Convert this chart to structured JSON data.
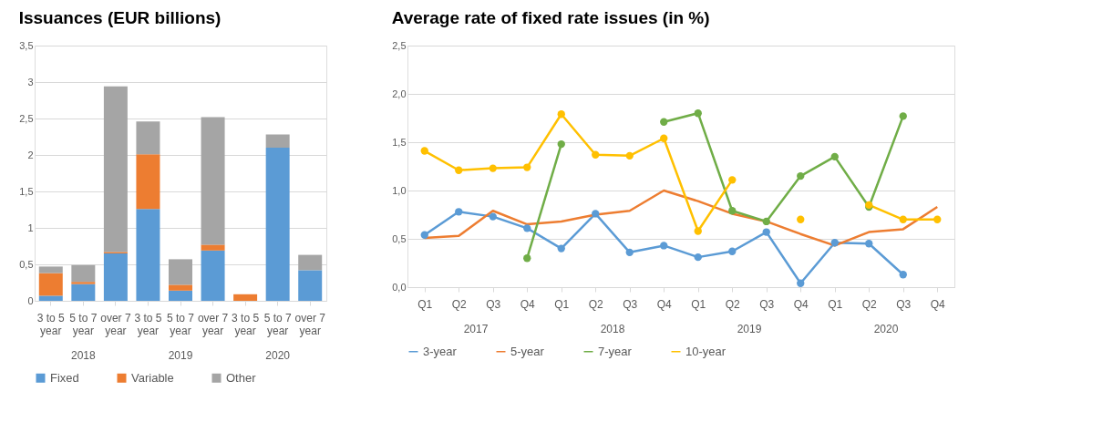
{
  "chart_data": [
    {
      "type": "bar",
      "title": "Issuances (EUR billions)",
      "stacked": true,
      "grid": "y",
      "legend": "bottom",
      "categories": [
        "3 to 5 year",
        "5 to 7 year",
        "over 7 year",
        "3 to 5 year",
        "5 to 7 year",
        "over 7 year",
        "3 to 5 year",
        "5 to 7 year",
        "over 7 year"
      ],
      "annotations": [
        "2018",
        "2019",
        "2020"
      ],
      "ylim": [
        0,
        3.5
      ],
      "yticks": [
        0,
        {
          "value": 0.5,
          "label": "0,5"
        },
        1,
        {
          "value": 1.5,
          "label": "1,5"
        },
        2,
        {
          "value": 2.5,
          "label": "2,5"
        },
        3,
        {
          "value": 3.5,
          "label": "3,5"
        }
      ],
      "series": [
        {
          "name": "Fixed",
          "color": "#5b9bd5",
          "values": [
            0.07,
            0.23,
            0.65,
            1.26,
            0.14,
            0.69,
            0,
            2.1,
            0.42
          ]
        },
        {
          "name": "Variable",
          "color": "#ed7d31",
          "values": [
            0.31,
            0.03,
            0.02,
            0.75,
            0.08,
            0.08,
            0.09,
            0,
            0
          ]
        },
        {
          "name": "Other",
          "color": "#a5a5a5",
          "values": [
            0.09,
            0.23,
            2.27,
            0.45,
            0.35,
            1.75,
            0,
            0.18,
            0.21
          ]
        }
      ]
    },
    {
      "type": "line",
      "title": "Average rate of fixed rate issues (in %)",
      "grid": "y",
      "legend": "bottom",
      "line_style": "solid",
      "categories": [
        "Q1",
        "Q2",
        "Q3",
        "Q4",
        "Q1",
        "Q2",
        "Q3",
        "Q4",
        "Q1",
        "Q2",
        "Q3",
        "Q4",
        "Q1",
        "Q2",
        "Q3",
        "Q4"
      ],
      "annotations": [
        "2017",
        "2018",
        "2019",
        "2020"
      ],
      "ylim": [
        0,
        2.5
      ],
      "yticks": [
        {
          "value": 0,
          "label": "0,0"
        },
        {
          "value": 0.5,
          "label": "0,5"
        },
        {
          "value": 1,
          "label": "1,0"
        },
        {
          "value": 1.5,
          "label": "1,5"
        },
        {
          "value": 2,
          "label": "2,0"
        },
        {
          "value": 2.5,
          "label": "2,5"
        }
      ],
      "series": [
        {
          "name": "3-year",
          "color": "#5b9bd5",
          "marker": "circle",
          "values": [
            0.54,
            0.78,
            0.73,
            0.61,
            0.4,
            0.76,
            0.36,
            0.43,
            0.31,
            0.37,
            0.57,
            0.04,
            0.46,
            0.45,
            0.13,
            null
          ]
        },
        {
          "name": "5-year",
          "color": "#ed7d31",
          "marker": "none",
          "values": [
            0.51,
            0.53,
            0.79,
            0.65,
            0.68,
            0.75,
            0.79,
            1.0,
            0.89,
            0.76,
            0.68,
            0.55,
            0.43,
            0.57,
            0.6,
            0.83
          ]
        },
        {
          "name": "7-year",
          "color": "#70ad47",
          "marker": "circle",
          "values": [
            null,
            null,
            null,
            0.3,
            1.48,
            null,
            null,
            1.71,
            1.8,
            0.79,
            0.68,
            1.15,
            1.35,
            0.83,
            1.77,
            null
          ]
        },
        {
          "name": "10-year",
          "color": "#ffc000",
          "marker": "circle",
          "values": [
            1.41,
            1.21,
            1.23,
            1.24,
            1.79,
            1.37,
            1.36,
            1.54,
            0.58,
            1.11,
            null,
            0.7,
            null,
            0.85,
            0.7,
            0.7
          ]
        }
      ]
    }
  ]
}
